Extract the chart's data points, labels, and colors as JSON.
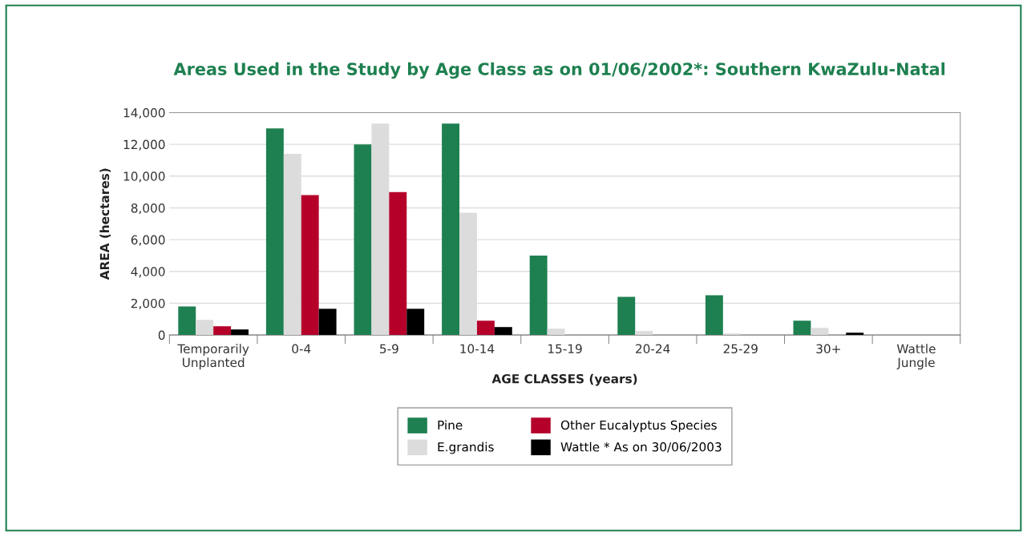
{
  "chart_data": {
    "type": "bar",
    "title": "Areas Used in the Study by Age Class as on 01/06/2002*: Southern KwaZulu-Natal",
    "xlabel": "AGE CLASSES (years)",
    "ylabel": "AREA (hectares)",
    "categories": [
      "Temporarily\nUnplanted",
      "0-4",
      "5-9",
      "10-14",
      "15-19",
      "20-24",
      "25-29",
      "30+",
      "Wattle\nJungle"
    ],
    "series": [
      {
        "name": "Pine",
        "color": "#1e8050",
        "values": [
          1800,
          13000,
          12000,
          13300,
          5000,
          2400,
          2500,
          900,
          0
        ]
      },
      {
        "name": "E.grandis",
        "color": "#dcdcdc",
        "values": [
          950,
          11400,
          13300,
          7700,
          400,
          250,
          100,
          450,
          0
        ]
      },
      {
        "name": "Other Eucalyptus Species",
        "color": "#b5002a",
        "values": [
          550,
          8800,
          9000,
          900,
          0,
          0,
          0,
          0,
          0
        ]
      },
      {
        "name": "Wattle * As on 30/06/2003",
        "color": "#000000",
        "values": [
          350,
          1650,
          1650,
          500,
          0,
          0,
          0,
          150,
          0
        ]
      }
    ],
    "ylim": [
      0,
      14000
    ],
    "yticks": [
      {
        "value": 0,
        "label": "0"
      },
      {
        "value": 2000,
        "label": "2,000"
      },
      {
        "value": 4000,
        "label": "4,000"
      },
      {
        "value": 6000,
        "label": "6,000"
      },
      {
        "value": 8000,
        "label": "8,000"
      },
      {
        "value": 10000,
        "label": "10,000"
      },
      {
        "value": 12000,
        "label": "12,000"
      },
      {
        "value": 14000,
        "label": "14,000"
      }
    ],
    "grid": "y",
    "legend": "bottom"
  }
}
